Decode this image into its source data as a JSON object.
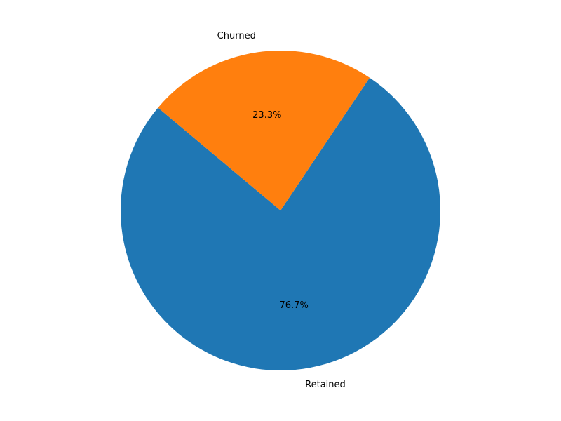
{
  "chart_data": {
    "type": "pie",
    "title": "",
    "slices": [
      {
        "label": "Retained",
        "value": 76.7,
        "pct_label": "76.7%",
        "color": "#1f77b4"
      },
      {
        "label": "Churned",
        "value": 23.3,
        "pct_label": "23.3%",
        "color": "#ff7f0e"
      }
    ],
    "start_angle_deg": 140,
    "direction": "counterclockwise",
    "legend": "none"
  }
}
